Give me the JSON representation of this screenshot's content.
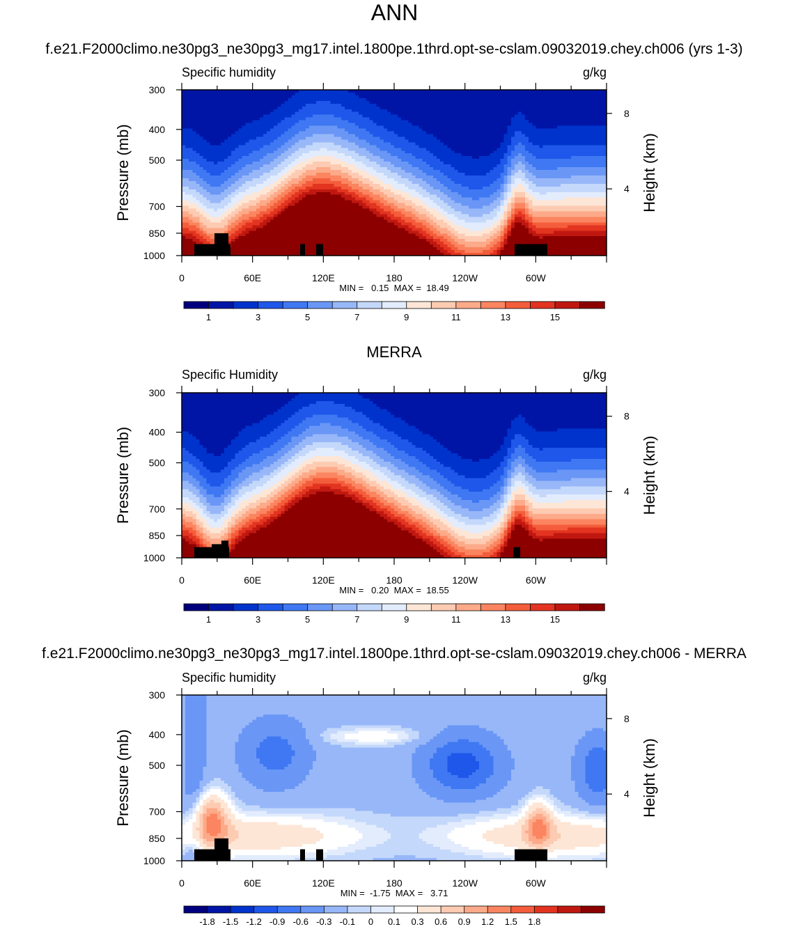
{
  "figure": {
    "title": "ANN"
  },
  "colors": {
    "abs_levels": [
      "#00007f",
      "#0015a6",
      "#0033cc",
      "#1f57ea",
      "#3f78f2",
      "#6a97f6",
      "#97b7f8",
      "#c4d8fb",
      "#e2ecfd",
      "#fde6d6",
      "#fdcbb2",
      "#fcaa89",
      "#fb8560",
      "#f45d3b",
      "#e23420",
      "#c01810",
      "#8c0000"
    ],
    "diff_levels": [
      "#00007f",
      "#0015a6",
      "#0033cc",
      "#1f57ea",
      "#3f78f2",
      "#6a97f6",
      "#97b7f8",
      "#c4d8fb",
      "#e2ecfd",
      "#ffffff",
      "#fde6d6",
      "#fdcbb2",
      "#fcaa89",
      "#fb8560",
      "#f45d3b",
      "#e23420",
      "#c01810",
      "#8c0000"
    ],
    "topography": "#000000"
  },
  "chart_data": [
    {
      "type": "heatmap",
      "title": "f.e21.F2000climo.ne30pg3_ne30pg3_mg17.intel.1800pe.1thrd.opt-se-cslam.09032019.chey.ch006 (yrs 1-3)",
      "left_label": "Specific humidity",
      "right_label": "g/kg",
      "ylabel": "Pressure (mb)",
      "y2label": "Height (km)",
      "x_ticks": [
        "0",
        "60E",
        "120E",
        "180",
        "120W",
        "60W"
      ],
      "y_ticks": [
        "300",
        "400",
        "500",
        "700",
        "850",
        "1000"
      ],
      "y2_ticks": [
        "8",
        "4"
      ],
      "stats_text": "MIN =   0.15  MAX =  18.49",
      "colorbar_labels": [
        "1",
        "3",
        "5",
        "7",
        "9",
        "11",
        "13",
        "15"
      ],
      "xlim": [
        0,
        360
      ],
      "ylim": [
        1000,
        300
      ]
    },
    {
      "type": "heatmap",
      "title": "MERRA",
      "left_label": "Specific Humidity",
      "right_label": "g/kg",
      "ylabel": "Pressure (mb)",
      "y2label": "Height (km)",
      "x_ticks": [
        "0",
        "60E",
        "120E",
        "180",
        "120W",
        "60W"
      ],
      "y_ticks": [
        "300",
        "400",
        "500",
        "700",
        "850",
        "1000"
      ],
      "y2_ticks": [
        "8",
        "4"
      ],
      "stats_text": "MIN =   0.20  MAX =  18.55",
      "colorbar_labels": [
        "1",
        "3",
        "5",
        "7",
        "9",
        "11",
        "13",
        "15"
      ],
      "xlim": [
        0,
        360
      ],
      "ylim": [
        1000,
        300
      ]
    },
    {
      "type": "heatmap",
      "title": "f.e21.F2000climo.ne30pg3_ne30pg3_mg17.intel.1800pe.1thrd.opt-se-cslam.09032019.chey.ch006 - MERRA",
      "left_label": "Specific humidity",
      "right_label": "g/kg",
      "ylabel": "Pressure (mb)",
      "y2label": "Height (km)",
      "x_ticks": [
        "0",
        "60E",
        "120E",
        "180",
        "120W",
        "60W"
      ],
      "y_ticks": [
        "300",
        "400",
        "500",
        "700",
        "850",
        "1000"
      ],
      "y2_ticks": [
        "8",
        "4"
      ],
      "stats_text": "MIN =  -1.75  MAX =   3.71",
      "colorbar_labels": [
        "-1.8",
        "-1.5",
        "-1.2",
        "-0.9",
        "-0.6",
        "-0.3",
        "-0.1",
        "0",
        "0.1",
        "0.3",
        "0.6",
        "0.9",
        "1.2",
        "1.5",
        "1.8"
      ],
      "xlim": [
        0,
        360
      ],
      "ylim": [
        1000,
        300
      ]
    }
  ]
}
